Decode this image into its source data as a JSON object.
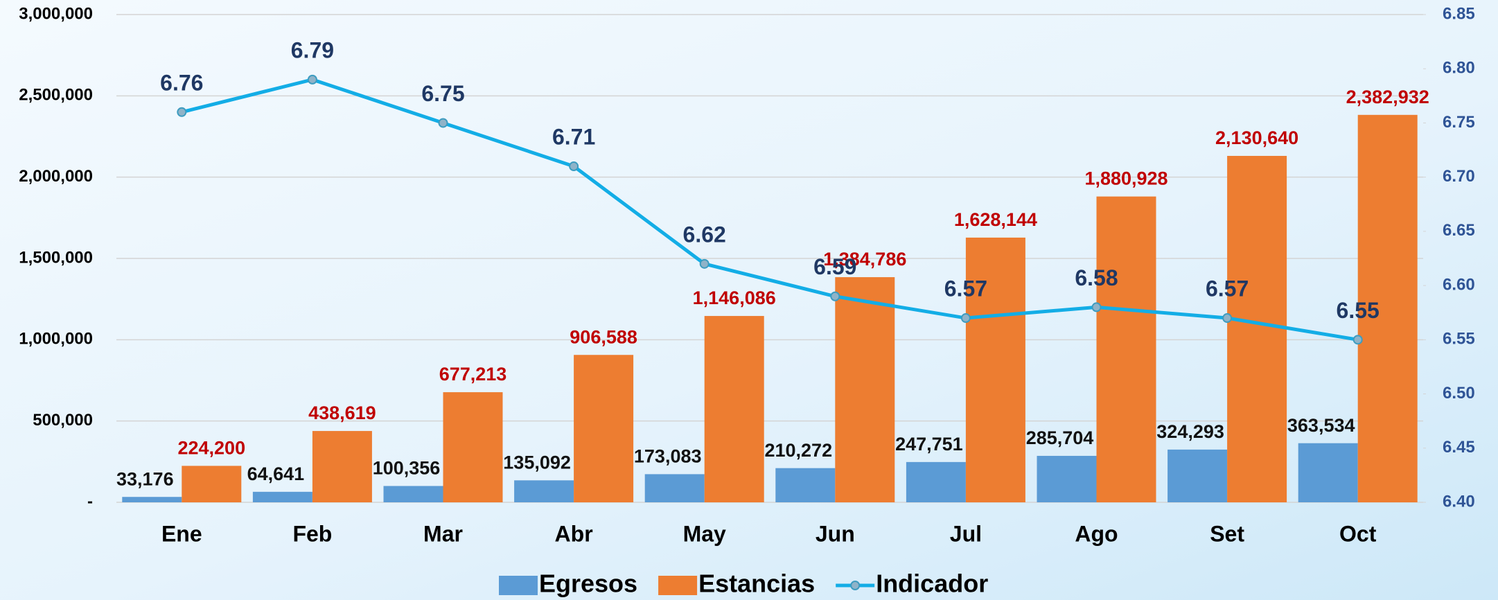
{
  "chart_data": {
    "type": "bar_line",
    "categories": [
      "Ene",
      "Feb",
      "Mar",
      "Abr",
      "May",
      "Jun",
      "Jul",
      "Ago",
      "Set",
      "Oct"
    ],
    "series": [
      {
        "name": "Egresos",
        "type": "bar",
        "color": "#5b9bd5",
        "label_color": "#111111",
        "values": [
          33176,
          64641,
          100356,
          135092,
          173083,
          210272,
          247751,
          285704,
          324293,
          363534
        ],
        "value_labels": [
          "33,176",
          "64,641",
          "100,356",
          "135,092",
          "173,083",
          "210,272",
          "247,751",
          "285,704",
          "324,293",
          "363,534"
        ]
      },
      {
        "name": "Estancias",
        "type": "bar",
        "color": "#ed7d31",
        "label_color": "#c00000",
        "values": [
          224200,
          438619,
          677213,
          906588,
          1146086,
          1384786,
          1628144,
          1880928,
          2130640,
          2382932
        ],
        "value_labels": [
          "224,200",
          "438,619",
          "677,213",
          "906,588",
          "1,146,086",
          "1,384,786",
          "1,628,144",
          "1,880,928",
          "2,130,640",
          "2,382,932"
        ]
      },
      {
        "name": "Indicador",
        "type": "line",
        "axis": "y2",
        "color": "#13ade6",
        "label_color": "#1f3864",
        "values": [
          6.76,
          6.79,
          6.75,
          6.71,
          6.62,
          6.59,
          6.57,
          6.58,
          6.57,
          6.55
        ]
      }
    ],
    "ylim": [
      0,
      3000000
    ],
    "yticks": [
      {
        "value": 0,
        "label": "-"
      },
      {
        "value": 500000,
        "label": "500,000"
      },
      {
        "value": 1000000,
        "label": "1,000,000"
      },
      {
        "value": 1500000,
        "label": "1,500,000"
      },
      {
        "value": 2000000,
        "label": "2,000,000"
      },
      {
        "value": 2500000,
        "label": "2,500,000"
      },
      {
        "value": 3000000,
        "label": "3,000,000"
      }
    ],
    "y2lim": [
      6.4,
      6.85
    ],
    "y2ticks": [
      {
        "value": 6.4,
        "label": "6.40"
      },
      6.45,
      {
        "value": 6.5,
        "label": "6.50"
      },
      6.55,
      {
        "value": 6.6,
        "label": "6.60"
      },
      6.65,
      {
        "value": 6.7,
        "label": "6.70"
      },
      6.75,
      {
        "value": 6.8,
        "label": "6.80"
      },
      6.85
    ],
    "grid": true,
    "legend": "bottom"
  }
}
